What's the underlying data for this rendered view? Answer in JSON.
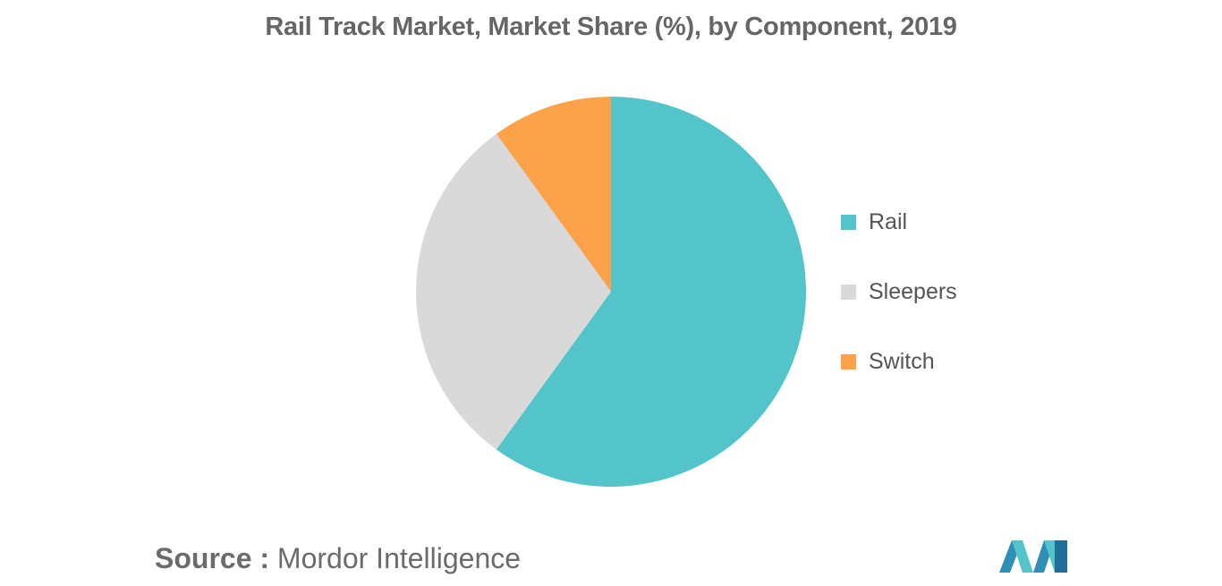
{
  "title": "Rail Track Market, Market Share (%), by Component, 2019",
  "source": {
    "prefix": "Source :",
    "name": "Mordor Intelligence"
  },
  "logo_icon": "mordor-intelligence-logo",
  "chart_data": {
    "type": "pie",
    "title": "Rail Track Market, Market Share (%), by Component, 2019",
    "categories": [
      "Rail",
      "Sleepers",
      "Switch"
    ],
    "values": [
      60,
      30,
      10
    ],
    "colors": [
      "#52C4CA",
      "#D9D9D9",
      "#FBA24A"
    ],
    "start_angle_deg": 0,
    "direction": "clockwise",
    "legend_position": "right"
  }
}
